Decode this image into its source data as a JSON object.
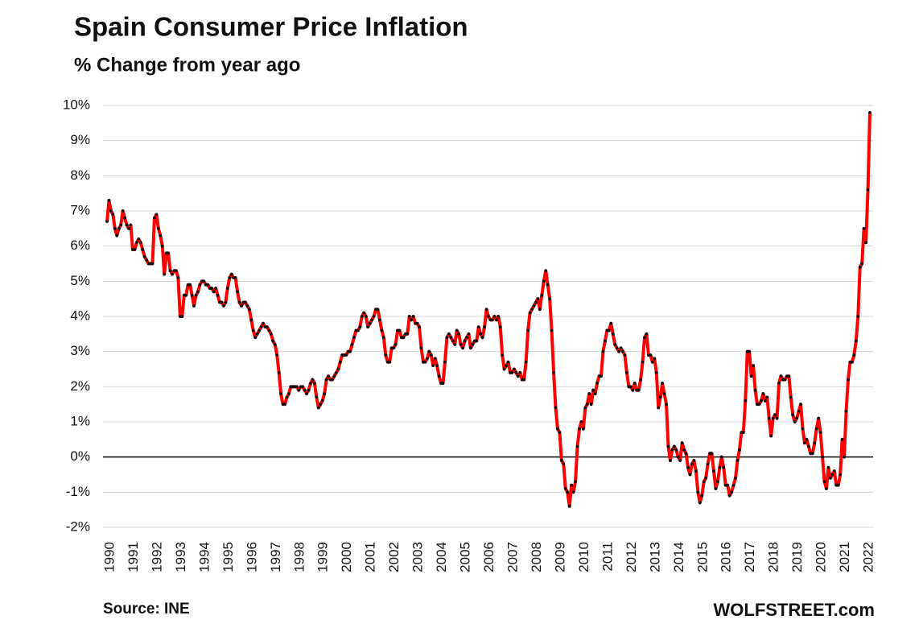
{
  "chart_data": {
    "type": "line",
    "title": "Spain Consumer Price Inflation",
    "subtitle": "% Change from year ago",
    "source": "Source: INE",
    "credit": "WOLFSTREET.com",
    "ylim": [
      -2,
      10
    ],
    "yticks": [
      {
        "value": -2,
        "label": "-2%"
      },
      {
        "value": -1,
        "label": "-1%"
      },
      {
        "value": 0,
        "label": "0%"
      },
      {
        "value": 1,
        "label": "1%"
      },
      {
        "value": 2,
        "label": "2%"
      },
      {
        "value": 3,
        "label": "3%"
      },
      {
        "value": 4,
        "label": "4%"
      },
      {
        "value": 5,
        "label": "5%"
      },
      {
        "value": 6,
        "label": "6%"
      },
      {
        "value": 7,
        "label": "7%"
      },
      {
        "value": 8,
        "label": "8%"
      },
      {
        "value": 9,
        "label": "9%"
      },
      {
        "value": 10,
        "label": "10%"
      }
    ],
    "grid": true,
    "categories": [
      "1990",
      null,
      null,
      null,
      null,
      null,
      null,
      null,
      null,
      null,
      null,
      null,
      "1991",
      null,
      null,
      null,
      null,
      null,
      null,
      null,
      null,
      null,
      null,
      null,
      "1992",
      null,
      null,
      null,
      null,
      null,
      null,
      null,
      null,
      null,
      null,
      null,
      "1993",
      null,
      null,
      null,
      null,
      null,
      null,
      null,
      null,
      null,
      null,
      null,
      "1994",
      null,
      null,
      null,
      null,
      null,
      null,
      null,
      null,
      null,
      null,
      null,
      "1995",
      null,
      null,
      null,
      null,
      null,
      null,
      null,
      null,
      null,
      null,
      null,
      "1996",
      null,
      null,
      null,
      null,
      null,
      null,
      null,
      null,
      null,
      null,
      null,
      "1997",
      null,
      null,
      null,
      null,
      null,
      null,
      null,
      null,
      null,
      null,
      null,
      "1998",
      null,
      null,
      null,
      null,
      null,
      null,
      null,
      null,
      null,
      null,
      null,
      "1999",
      null,
      null,
      null,
      null,
      null,
      null,
      null,
      null,
      null,
      null,
      null,
      "2000",
      null,
      null,
      null,
      null,
      null,
      null,
      null,
      null,
      null,
      null,
      null,
      "2001",
      null,
      null,
      null,
      null,
      null,
      null,
      null,
      null,
      null,
      null,
      null,
      "2002",
      null,
      null,
      null,
      null,
      null,
      null,
      null,
      null,
      null,
      null,
      null,
      "2003",
      null,
      null,
      null,
      null,
      null,
      null,
      null,
      null,
      null,
      null,
      null,
      "2004",
      null,
      null,
      null,
      null,
      null,
      null,
      null,
      null,
      null,
      null,
      null,
      "2005",
      null,
      null,
      null,
      null,
      null,
      null,
      null,
      null,
      null,
      null,
      null,
      "2006",
      null,
      null,
      null,
      null,
      null,
      null,
      null,
      null,
      null,
      null,
      null,
      "2007",
      null,
      null,
      null,
      null,
      null,
      null,
      null,
      null,
      null,
      null,
      null,
      "2008",
      null,
      null,
      null,
      null,
      null,
      null,
      null,
      null,
      null,
      null,
      null,
      "2009",
      null,
      null,
      null,
      null,
      null,
      null,
      null,
      null,
      null,
      null,
      null,
      "2010",
      null,
      null,
      null,
      null,
      null,
      null,
      null,
      null,
      null,
      null,
      null,
      "2011",
      null,
      null,
      null,
      null,
      null,
      null,
      null,
      null,
      null,
      null,
      null,
      "2012",
      null,
      null,
      null,
      null,
      null,
      null,
      null,
      null,
      null,
      null,
      null,
      "2013",
      null,
      null,
      null,
      null,
      null,
      null,
      null,
      null,
      null,
      null,
      null,
      "2014",
      null,
      null,
      null,
      null,
      null,
      null,
      null,
      null,
      null,
      null,
      null,
      "2015",
      null,
      null,
      null,
      null,
      null,
      null,
      null,
      null,
      null,
      null,
      null,
      "2016",
      null,
      null,
      null,
      null,
      null,
      null,
      null,
      null,
      null,
      null,
      null,
      "2017",
      null,
      null,
      null,
      null,
      null,
      null,
      null,
      null,
      null,
      null,
      null,
      "2018",
      null,
      null,
      null,
      null,
      null,
      null,
      null,
      null,
      null,
      null,
      null,
      "2019",
      null,
      null,
      null,
      null,
      null,
      null,
      null,
      null,
      null,
      null,
      null,
      "2020",
      null,
      null,
      null,
      null,
      null,
      null,
      null,
      null,
      null,
      null,
      null,
      "2021",
      null,
      null,
      null,
      null,
      null,
      null,
      null,
      null,
      null,
      null,
      null,
      "2022",
      null,
      null
    ],
    "series": [
      {
        "color": "#ff0000",
        "marker_color": "#111111",
        "values": [
          6.7,
          7.3,
          7.0,
          6.9,
          6.5,
          6.3,
          6.5,
          6.6,
          7.0,
          6.8,
          6.6,
          6.5,
          6.6,
          5.9,
          5.9,
          6.1,
          6.2,
          6.1,
          5.9,
          5.7,
          5.6,
          5.5,
          5.5,
          5.5,
          6.8,
          6.9,
          6.5,
          6.3,
          6.0,
          5.2,
          5.8,
          5.8,
          5.3,
          5.2,
          5.3,
          5.3,
          5.1,
          4.0,
          4.0,
          4.6,
          4.6,
          4.9,
          4.9,
          4.6,
          4.3,
          4.6,
          4.7,
          4.9,
          5.0,
          5.0,
          4.9,
          4.9,
          4.8,
          4.8,
          4.7,
          4.8,
          4.6,
          4.4,
          4.4,
          4.3,
          4.4,
          4.8,
          5.1,
          5.2,
          5.1,
          5.1,
          4.7,
          4.4,
          4.3,
          4.4,
          4.4,
          4.3,
          4.2,
          3.9,
          3.6,
          3.4,
          3.5,
          3.6,
          3.7,
          3.8,
          3.7,
          3.7,
          3.6,
          3.5,
          3.3,
          3.2,
          2.9,
          2.4,
          1.8,
          1.5,
          1.5,
          1.7,
          1.8,
          2.0,
          2.0,
          2.0,
          2.0,
          1.9,
          2.0,
          2.0,
          1.9,
          1.8,
          1.9,
          2.1,
          2.2,
          2.1,
          1.7,
          1.4,
          1.5,
          1.6,
          1.8,
          2.2,
          2.3,
          2.2,
          2.2,
          2.3,
          2.4,
          2.5,
          2.7,
          2.9,
          2.9,
          2.9,
          3.0,
          3.0,
          3.2,
          3.4,
          3.6,
          3.6,
          3.7,
          4.0,
          4.1,
          4.0,
          3.7,
          3.8,
          3.9,
          4.0,
          4.2,
          4.2,
          3.9,
          3.6,
          3.4,
          2.9,
          2.7,
          2.7,
          3.1,
          3.1,
          3.2,
          3.6,
          3.6,
          3.4,
          3.4,
          3.5,
          3.5,
          4.0,
          3.9,
          4.0,
          3.8,
          3.8,
          3.7,
          3.1,
          2.7,
          2.7,
          2.8,
          3.0,
          2.9,
          2.6,
          2.8,
          2.6,
          2.3,
          2.1,
          2.1,
          2.7,
          3.4,
          3.5,
          3.4,
          3.3,
          3.2,
          3.6,
          3.5,
          3.2,
          3.1,
          3.3,
          3.4,
          3.5,
          3.1,
          3.2,
          3.3,
          3.3,
          3.7,
          3.5,
          3.4,
          3.7,
          4.2,
          4.0,
          3.9,
          3.9,
          4.0,
          3.9,
          4.0,
          3.7,
          2.9,
          2.5,
          2.6,
          2.7,
          2.4,
          2.4,
          2.5,
          2.4,
          2.3,
          2.4,
          2.2,
          2.2,
          2.7,
          3.6,
          4.1,
          4.2,
          4.3,
          4.4,
          4.5,
          4.2,
          4.6,
          5.0,
          5.3,
          4.9,
          4.5,
          3.6,
          2.4,
          1.4,
          0.8,
          0.7,
          -0.1,
          -0.2,
          -0.9,
          -1.0,
          -1.4,
          -0.8,
          -1.0,
          -0.7,
          0.3,
          0.8,
          1.0,
          0.8,
          1.4,
          1.5,
          1.8,
          1.5,
          1.9,
          1.8,
          2.1,
          2.3,
          2.3,
          3.0,
          3.3,
          3.6,
          3.6,
          3.8,
          3.5,
          3.2,
          3.1,
          3.0,
          3.1,
          3.0,
          2.9,
          2.4,
          2.0,
          2.0,
          1.9,
          2.1,
          1.9,
          1.9,
          2.2,
          2.7,
          3.4,
          3.5,
          2.9,
          2.9,
          2.7,
          2.8,
          2.4,
          1.4,
          1.7,
          2.1,
          1.8,
          1.5,
          0.3,
          -0.1,
          0.2,
          0.3,
          0.2,
          0.0,
          -0.1,
          0.4,
          0.2,
          0.1,
          -0.3,
          -0.5,
          -0.2,
          -0.1,
          -0.4,
          -1.0,
          -1.3,
          -1.1,
          -0.7,
          -0.6,
          -0.2,
          0.1,
          0.1,
          -0.4,
          -0.9,
          -0.7,
          -0.3,
          0.0,
          -0.3,
          -0.8,
          -0.8,
          -1.1,
          -1.0,
          -0.8,
          -0.6,
          -0.1,
          0.2,
          0.7,
          0.7,
          1.6,
          3.0,
          3.0,
          2.3,
          2.6,
          1.9,
          1.5,
          1.5,
          1.6,
          1.8,
          1.6,
          1.7,
          1.1,
          0.6,
          1.1,
          1.2,
          1.1,
          2.1,
          2.3,
          2.2,
          2.2,
          2.3,
          2.3,
          1.7,
          1.2,
          1.0,
          1.1,
          1.3,
          1.5,
          0.8,
          0.4,
          0.5,
          0.3,
          0.1,
          0.1,
          0.4,
          0.8,
          1.1,
          0.7,
          0.0,
          -0.7,
          -0.9,
          -0.3,
          -0.6,
          -0.5,
          -0.4,
          -0.8,
          -0.8,
          -0.5,
          0.5,
          0.0,
          1.3,
          2.2,
          2.7,
          2.7,
          2.9,
          3.3,
          4.0,
          5.4,
          5.5,
          6.5,
          6.1,
          7.6,
          9.8
        ]
      }
    ]
  }
}
